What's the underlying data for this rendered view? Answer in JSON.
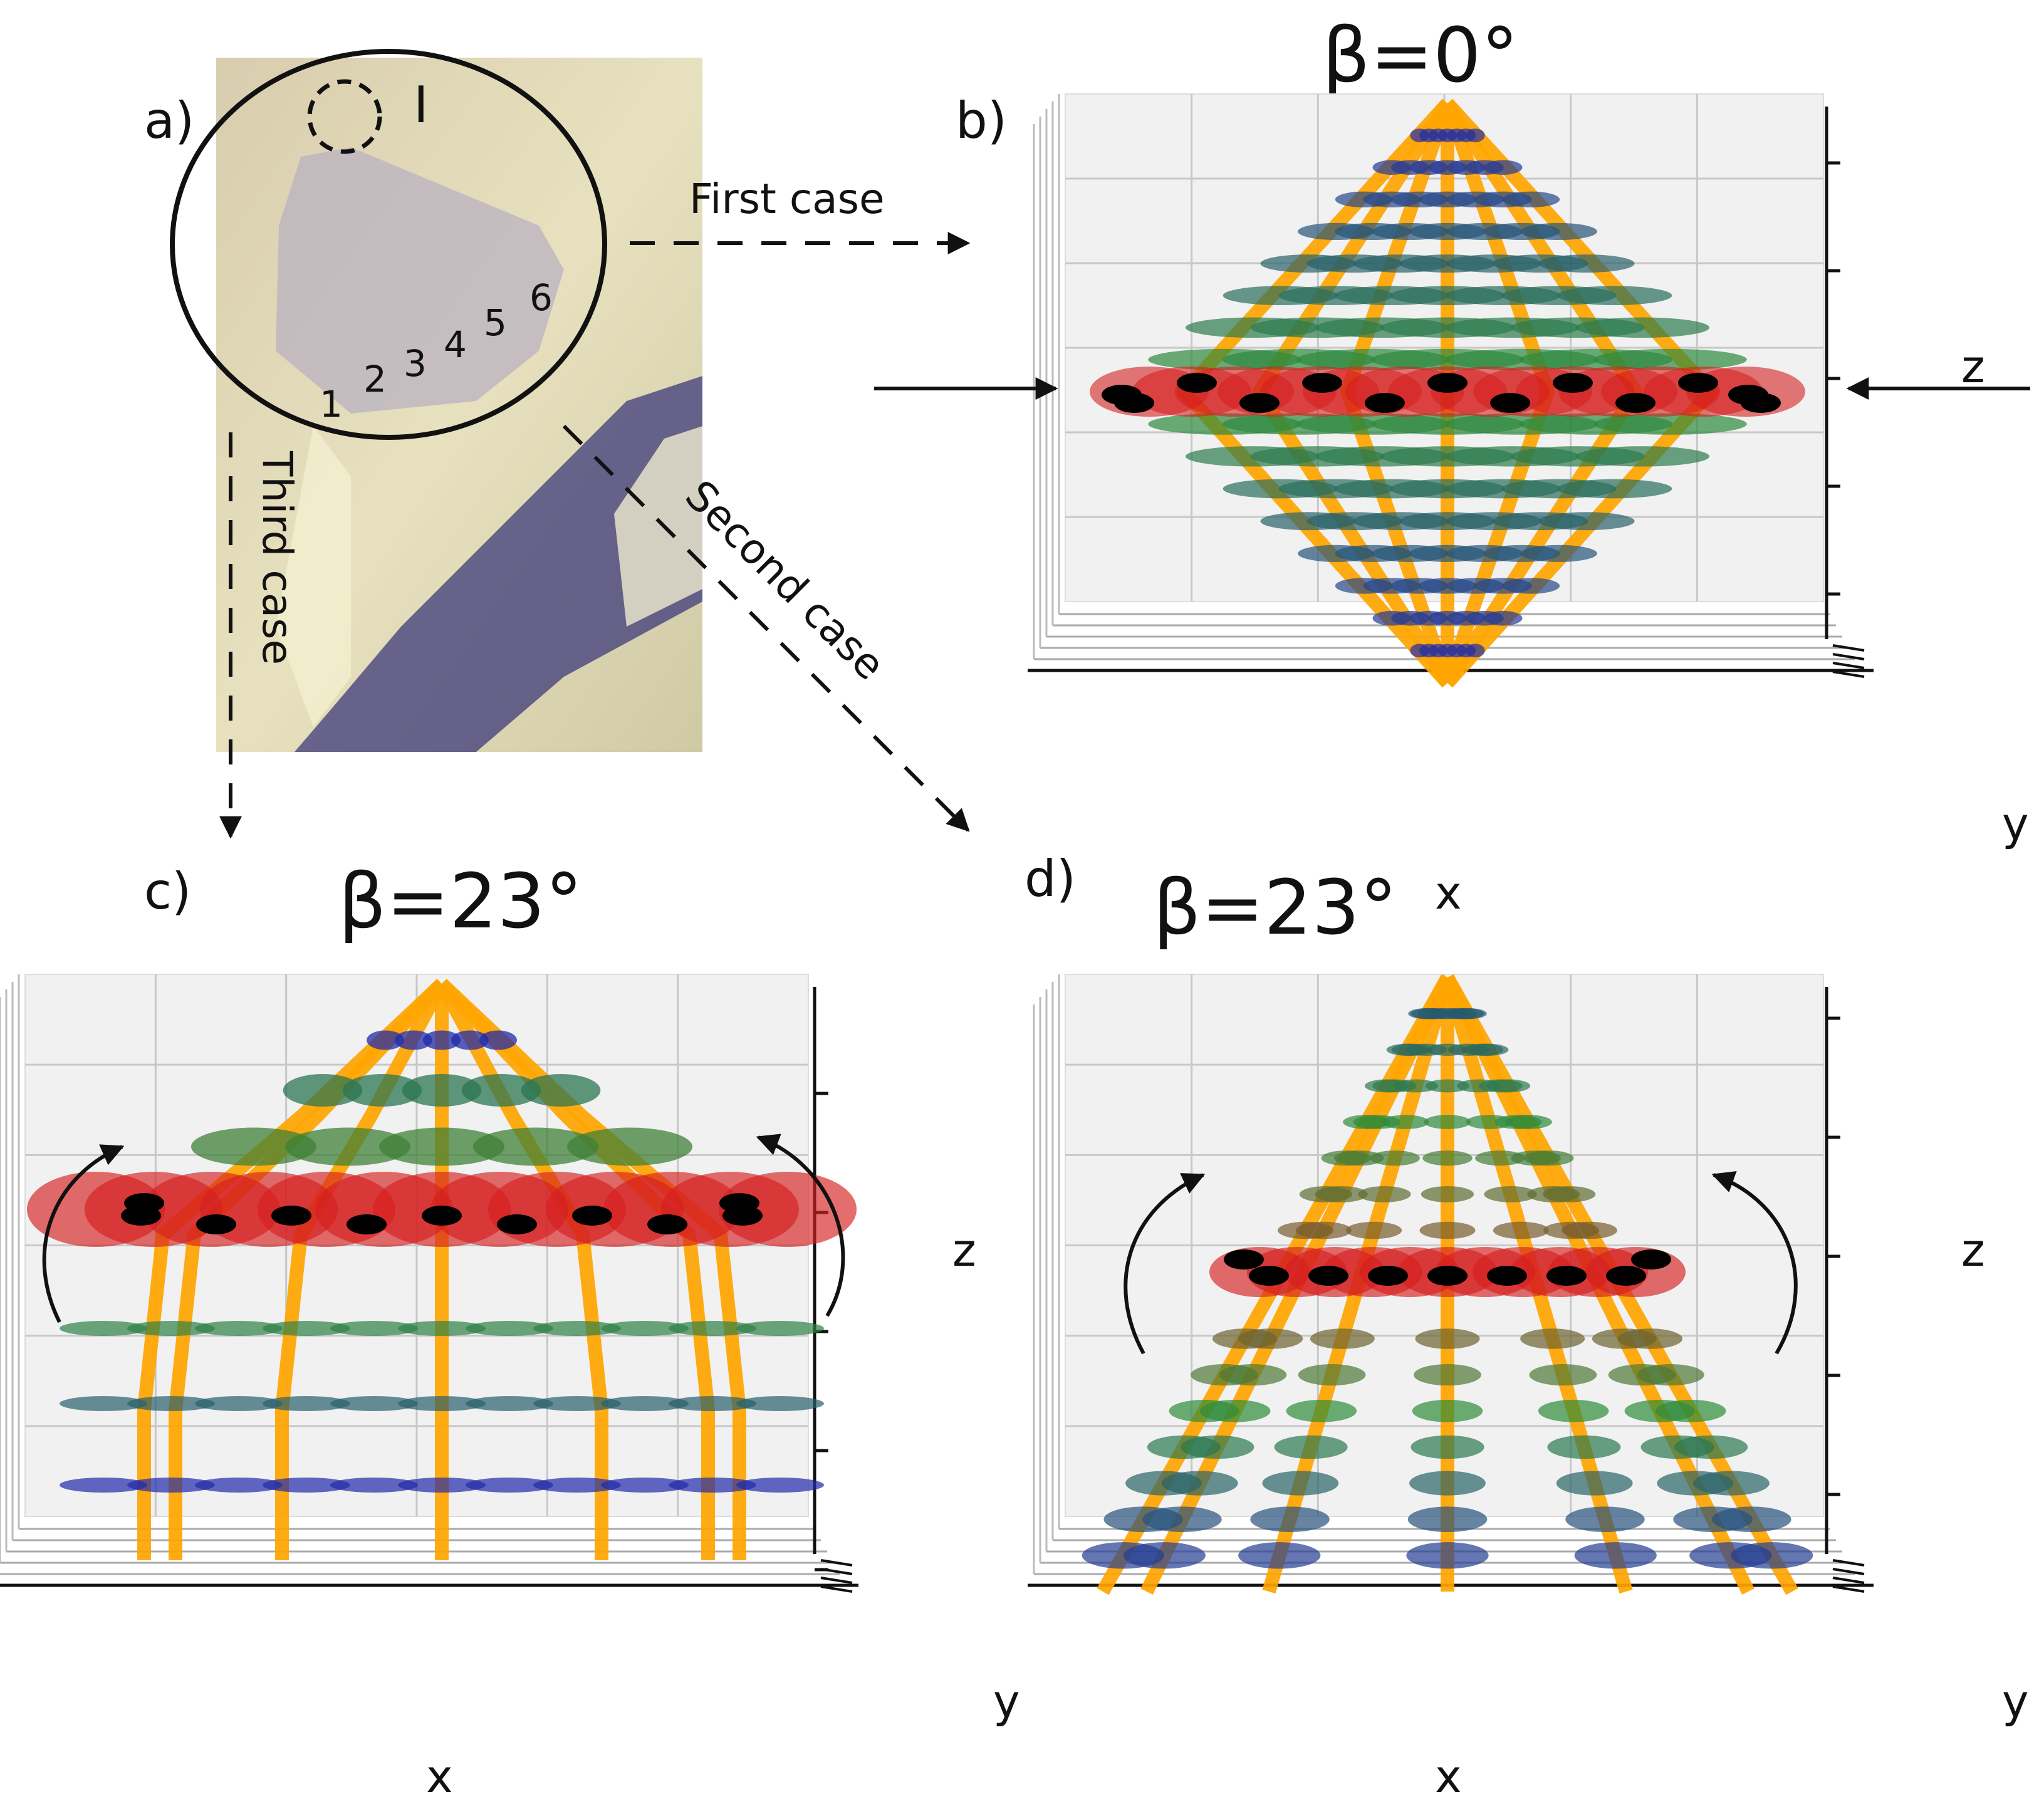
{
  "panels": {
    "a": {
      "label": "a)",
      "inset_mark": "I",
      "stage_numbers": [
        "1",
        "2",
        "3",
        "4",
        "5",
        "6"
      ]
    },
    "b": {
      "label": "b)",
      "title": "β=0°",
      "axis_labels": {
        "x": "x",
        "y": "y",
        "z": "z"
      }
    },
    "c": {
      "label": "c)",
      "title": "β=23°",
      "axis_labels": {
        "x": "x",
        "y": "y",
        "z": "z"
      }
    },
    "d": {
      "label": "d)",
      "title": "β=23°",
      "axis_labels": {
        "x": "x",
        "y": "y",
        "z": "z"
      }
    }
  },
  "arrows": {
    "first": "First case",
    "second": "Second case",
    "third": "Third case"
  },
  "colors": {
    "fiber": "#ffa500",
    "level_top": "#1f1fb4",
    "level_mid": "#2e8b3a",
    "level_band": "#d61f1f",
    "knot": "#000000",
    "grid": "#c8c8c8",
    "pane": "#f1f1f1"
  }
}
